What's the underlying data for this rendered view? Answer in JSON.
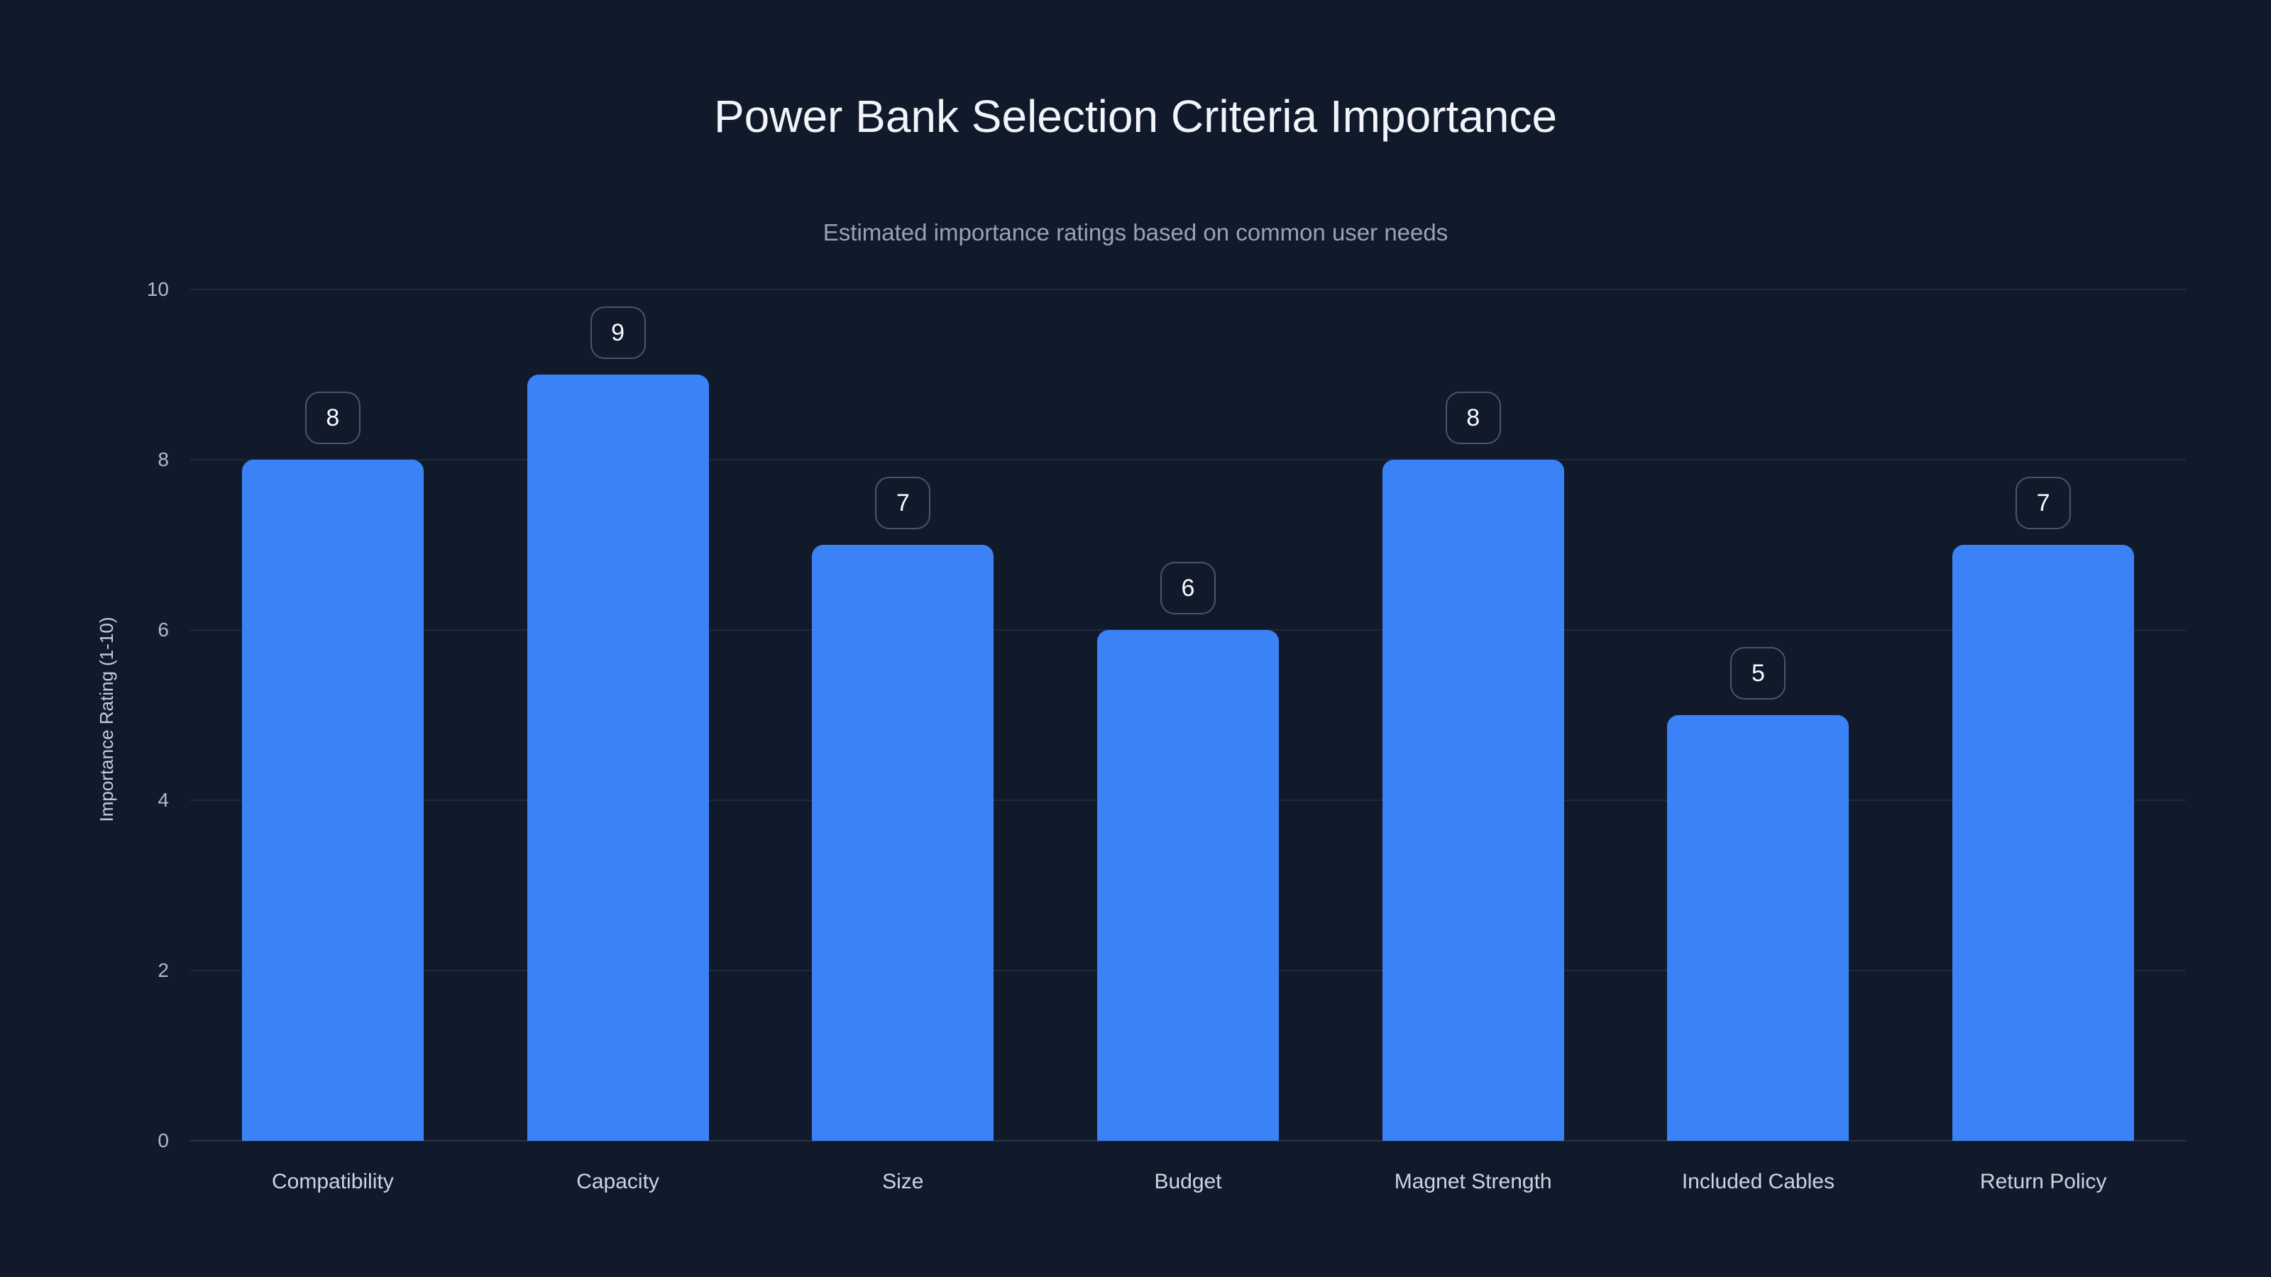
{
  "chart_data": {
    "type": "bar",
    "title": "Power Bank Selection Criteria Importance",
    "subtitle": "Estimated importance ratings based on common user needs",
    "xlabel": "",
    "ylabel": "Importance Rating (1-10)",
    "categories": [
      "Compatibility",
      "Capacity",
      "Size",
      "Budget",
      "Magnet Strength",
      "Included Cables",
      "Return Policy"
    ],
    "values": [
      8,
      9,
      7,
      6,
      8,
      5,
      7
    ],
    "value_labels": [
      "8",
      "9",
      "7",
      "6",
      "8",
      "5",
      "7"
    ],
    "ylim": [
      0,
      10
    ],
    "yticks": [
      0,
      2,
      4,
      6,
      8,
      10
    ],
    "grid": true,
    "legend_position": "none",
    "colors": {
      "background": "#111a2b",
      "bar": "#3b82f6",
      "gridline": "#1f2a3c",
      "axis_line": "#283349",
      "title_text": "#f1f5f9",
      "subtitle_text": "#94a3b8",
      "tick_text": "#aeb9c9",
      "category_text": "#cbd5e1",
      "axis_title_text": "#c3cdda",
      "badge_border": "#49556b",
      "badge_text": "#f8fafc"
    }
  }
}
